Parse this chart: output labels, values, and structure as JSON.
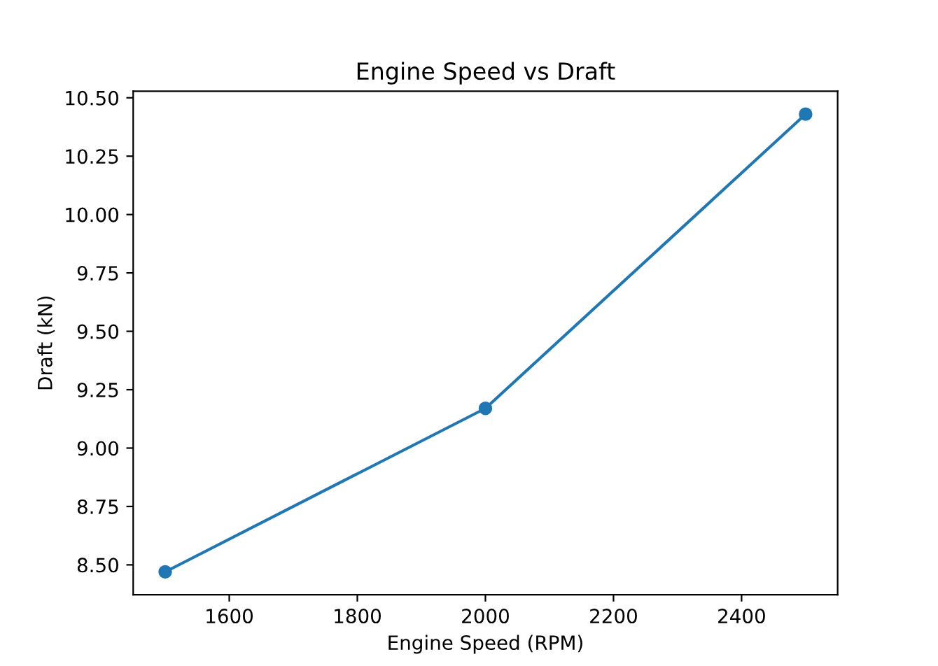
{
  "chart_data": {
    "type": "line",
    "title": "Engine Speed vs Draft",
    "xlabel": "Engine Speed (RPM)",
    "ylabel": "Draft (kN)",
    "x": [
      1500,
      2000,
      2500
    ],
    "series": [
      {
        "color": "#1f77b4",
        "values": [
          8.47,
          9.17,
          10.43
        ]
      }
    ],
    "marker": "circle",
    "line_style": "solid",
    "xlim": [
      1450,
      2550
    ],
    "xticks": [
      1600,
      1800,
      2000,
      2200,
      2400
    ],
    "ylim": [
      8.372,
      10.528
    ],
    "yticks": [
      {
        "value": 8.5,
        "label": "8.50"
      },
      {
        "value": 8.75,
        "label": "8.75"
      },
      {
        "value": 9.0,
        "label": "9.00"
      },
      {
        "value": 9.25,
        "label": "9.25"
      },
      {
        "value": 9.5,
        "label": "9.50"
      },
      {
        "value": 9.75,
        "label": "9.75"
      },
      {
        "value": 10.0,
        "label": "10.00"
      },
      {
        "value": 10.25,
        "label": "10.25"
      },
      {
        "value": 10.5,
        "label": "10.50"
      }
    ],
    "grid": false,
    "legend": false
  }
}
